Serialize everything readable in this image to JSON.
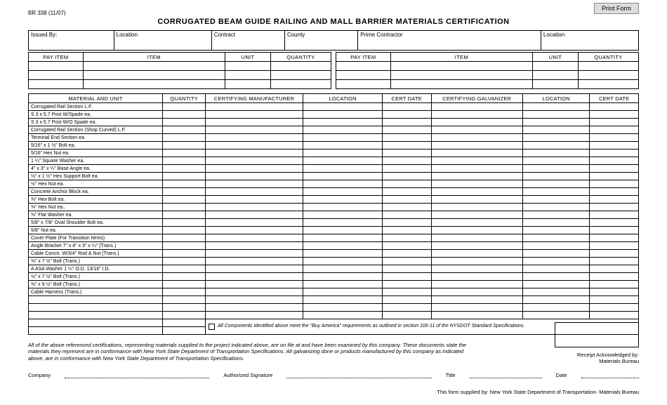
{
  "form_id": "BR 338 (11/07)",
  "print_label": "Print Form",
  "title": "CORRUGATED BEAM GUIDE RAILING AND MALL BARRIER MATERIALS CERTIFICATION",
  "header_fields": [
    "Issued By:",
    "Location",
    "Contract",
    "County",
    "Prime Contractor",
    "Location"
  ],
  "pay_cols": [
    "PAY  ITEM",
    "ITEM",
    "UNIT",
    "QUANTITY"
  ],
  "main_cols": [
    "MATERIAL AND UNIT",
    "QUANTITY",
    "CERTIFYING MANUFACTURER",
    "LOCATION",
    "CERT DATE",
    "CERTIFYING GALVANIZER",
    "LOCATION",
    "CERT DATE"
  ],
  "materials": [
    "Corrugated Rail Section  L.F.",
    "S 3 x 5.7 Post W/Spade  ea.",
    "S 3 x 5.7 Post W/O Spade  ea.",
    "Corrugated Rail Section (Shop Curved)  L.F.",
    "Terminal End Section  ea.",
    "5/16\" x 1 ½\" Bolt  ea.",
    "5/16\" Hex Nut  ea.",
    "1 ¼\" Square Washer  ea.",
    "4\" x 3\" x ¼\" Base Angle  ea.",
    "½\" x 1 ½\" Hex Support Bolt  ea.",
    "½\" Hex Nut  ea.",
    "Concrete Anchor Block  ea.",
    "⅜\" Hex Bolt  ea.",
    "⅜\" Hex Nut  ea..",
    "⅜\" Flat Washer ea.",
    "5/8\" x 7/8\" Oval Shoulder Bolt  ea.",
    "5/8\" Nut ea.",
    "Cover Plate (For Transition Items)",
    "Angle Bracket 7\" x 4\" x 3\" x ¼\" (Trans.)",
    "Cable Conctr. W/3/4\" Rod & Nut (Trans.)",
    "⅜\" x 7 ½\" Bolt (Trans.)",
    "A ASA Washer 1 ¼\" O.D. 13/16\" I.D.",
    "½\" x 7 ½\" Bolt (Trans.)",
    "⅜\" x 9 ½\" Bolt (Trans.)",
    "Cable Harness (Trans.)"
  ],
  "buy_america": "All Components identified above meet the \"Buy America\" requirements as outlined in section 106-11 of the NYSDOT Standard Specifications.",
  "cert_note": "All of the above referenced certifications, representing materials supplied to the project indicated above, are on file at and have been examined by this company. These documents state the materials they represent are in conformance with New York State Department of Transportation Specifications. All galvanizing done or products manufactured by this company as indicated above, are in conformance with New York State Department of Transportation Specifications.",
  "sig": {
    "company": "Company",
    "auth": "Authorized Signature",
    "title": "Title",
    "date": "Date"
  },
  "receipt": "Receipt Acknowledged by:\nMaterials Bureau",
  "supplied": "This form supplied by: New York State Department of Transportation- Materials Bureau",
  "col_widths_main": [
    "22%",
    "7%",
    "16%",
    "13%",
    "8%",
    "15%",
    "11%",
    "8%"
  ],
  "blank_rows_after": 3
}
